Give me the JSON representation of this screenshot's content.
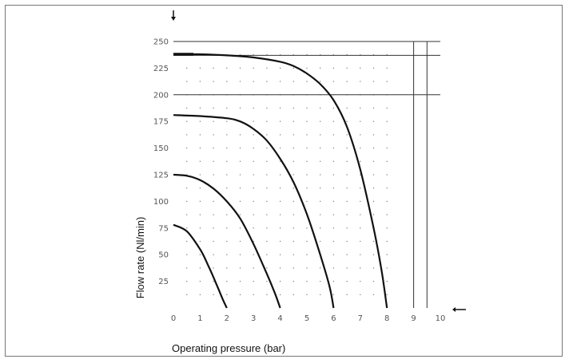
{
  "chart_data": {
    "type": "line",
    "title": "",
    "xlabel": "Operating pressure (bar)",
    "ylabel": "Flow rate (Nl/min)",
    "xlim": [
      0,
      10
    ],
    "ylim": [
      0,
      250
    ],
    "x_ticks": [
      "0",
      "1",
      "2",
      "3",
      "4",
      "5",
      "6",
      "7",
      "8",
      "9",
      "10"
    ],
    "y_ticks": [
      "25",
      "50",
      "75",
      "100",
      "125",
      "150",
      "175",
      "200",
      "225",
      "250"
    ],
    "grid": "dotted",
    "legend": "none",
    "reference_lines": {
      "horizontal": [
        250,
        237,
        200
      ],
      "vertical": [
        9.0,
        9.5
      ]
    },
    "series": [
      {
        "x": [
          0,
          0.5,
          1.0,
          1.3,
          1.6,
          1.85,
          2.0
        ],
        "y": [
          78,
          72,
          55,
          40,
          23,
          8,
          0
        ]
      },
      {
        "x": [
          0,
          0.5,
          1.0,
          1.5,
          2.0,
          2.5,
          3.0,
          3.5,
          3.8,
          4.0
        ],
        "y": [
          125,
          124,
          120,
          112,
          100,
          84,
          60,
          32,
          14,
          0
        ]
      },
      {
        "x": [
          0,
          1,
          2,
          2.5,
          3.0,
          3.5,
          4.0,
          4.5,
          5.0,
          5.5,
          5.85,
          6.0
        ],
        "y": [
          181,
          180,
          178,
          175,
          168,
          157,
          140,
          118,
          88,
          50,
          20,
          0
        ]
      },
      {
        "x": [
          0,
          1,
          2,
          3,
          4,
          4.5,
          5.0,
          5.5,
          6.0,
          6.5,
          7.0,
          7.5,
          7.8,
          8.0
        ],
        "y": [
          238,
          238,
          237,
          235,
          231,
          227,
          220,
          210,
          195,
          170,
          130,
          75,
          35,
          0
        ]
      }
    ],
    "colors": {
      "curve": "#111111",
      "reference_line": "#333333",
      "grid_dot": "#777777",
      "frame": "#777777"
    }
  }
}
